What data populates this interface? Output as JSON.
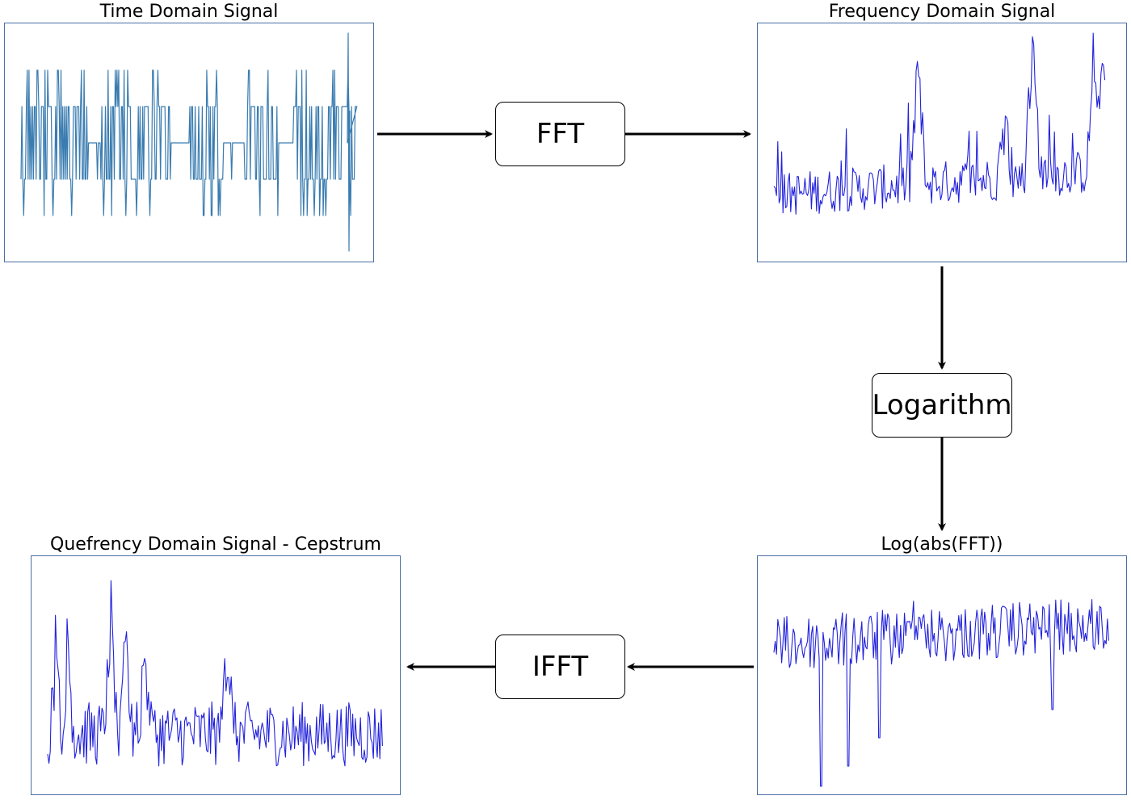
{
  "panels": {
    "time": {
      "title": "Time Domain Signal",
      "color": "#3a7cb0"
    },
    "frequency": {
      "title": "Frequency Domain Signal",
      "color": "#2222dd"
    },
    "log": {
      "title": "Log(abs(FFT))",
      "color": "#2222dd"
    },
    "cepstrum": {
      "title": "Quefrency Domain Signal - Cepstrum",
      "color": "#2222dd"
    }
  },
  "steps": {
    "fft": "FFT",
    "logarithm": "Logarithm",
    "ifft": "IFFT"
  },
  "colors": {
    "panel_border": "#4a6fa5",
    "arrow": "#000000"
  }
}
